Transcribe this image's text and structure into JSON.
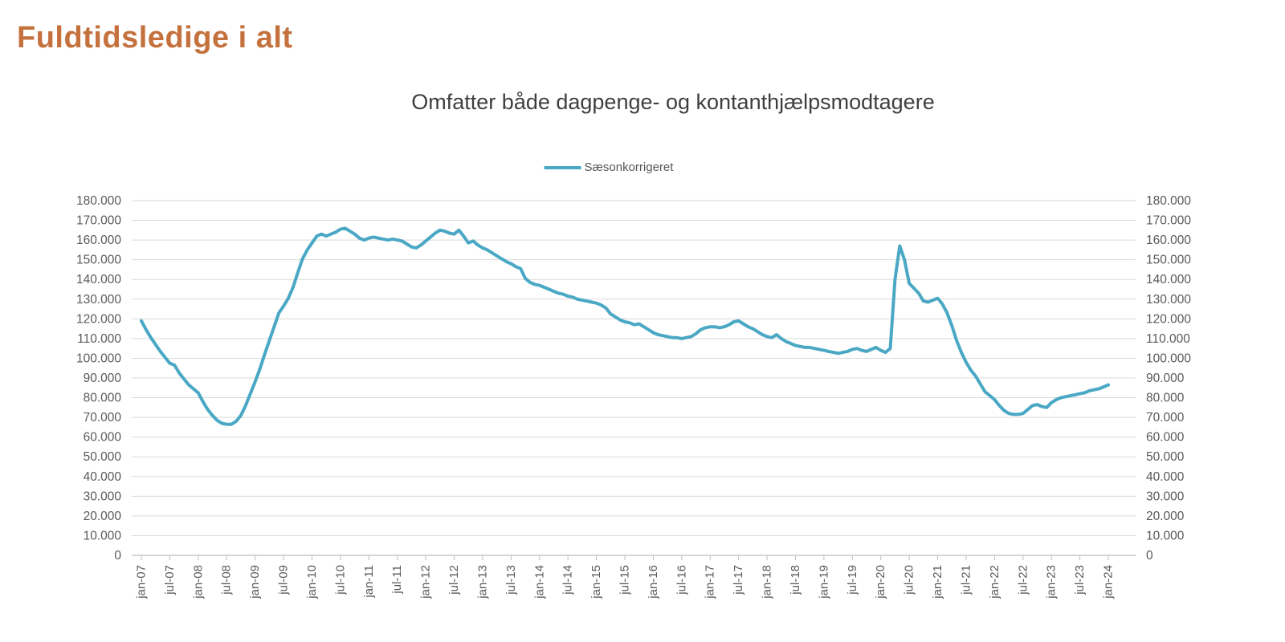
{
  "page": {
    "title": "Fuldtidsledige i alt"
  },
  "colors": {
    "title_text": "#C4713E",
    "line": "#4AA8C5",
    "axis_text": "#595959",
    "subtitle_text": "#3F3F3F",
    "gridline": "#DADADA",
    "axis_line": "#BFBFBF"
  },
  "chart_data": {
    "type": "line",
    "title": "Omfatter både dagpenge- og kontanthjælpsmodtagere",
    "frequency": "monthly",
    "x_start": "jan-07",
    "x_end": "jan-24",
    "grid": "horizontal",
    "legend_position": "top-center",
    "ylim": [
      0,
      180000
    ],
    "y_tick_step": 10000,
    "y_tick_labels": [
      "0",
      "10.000",
      "20.000",
      "30.000",
      "40.000",
      "50.000",
      "60.000",
      "70.000",
      "80.000",
      "90.000",
      "100.000",
      "110.000",
      "120.000",
      "130.000",
      "140.000",
      "150.000",
      "160.000",
      "170.000",
      "180.000"
    ],
    "x_tick_labels": [
      "jan-07",
      "jul-07",
      "jan-08",
      "jul-08",
      "jan-09",
      "jul-09",
      "jan-10",
      "jul-10",
      "jan-11",
      "jul-11",
      "jan-12",
      "jul-12",
      "jan-13",
      "jul-13",
      "jan-14",
      "jul-14",
      "jan-15",
      "jul-15",
      "jan-16",
      "jul-16",
      "jan-17",
      "jul-17",
      "jan-18",
      "jul-18",
      "jan-19",
      "jul-19",
      "jan-20",
      "jul-20",
      "jan-21",
      "jul-21",
      "jan-22",
      "jul-22",
      "jan-23",
      "jul-23",
      "jan-24"
    ],
    "series": [
      {
        "name": "Sæsonkorrigeret",
        "color": "#4AA8C5",
        "monthly_values": [
          119000,
          114500,
          110500,
          107000,
          103500,
          100500,
          97500,
          96500,
          92500,
          89500,
          86500,
          84500,
          82500,
          78000,
          74000,
          71000,
          68500,
          67000,
          66500,
          66500,
          68000,
          71000,
          76000,
          82000,
          88000,
          94500,
          102000,
          109000,
          116000,
          123000,
          126500,
          130500,
          136000,
          143500,
          150500,
          155000,
          158500,
          162000,
          163000,
          162000,
          163000,
          164000,
          165500,
          166000,
          164500,
          163000,
          161000,
          160000,
          161000,
          161500,
          161000,
          160500,
          160000,
          160500,
          160000,
          159500,
          158000,
          156500,
          156000,
          157500,
          159500,
          161500,
          163500,
          165000,
          164500,
          163500,
          163000,
          165000,
          162000,
          158500,
          159500,
          157500,
          156000,
          155000,
          153500,
          152000,
          150500,
          149000,
          148000,
          146500,
          145500,
          140500,
          138500,
          137500,
          137000,
          136000,
          135000,
          134000,
          133000,
          132500,
          131500,
          131000,
          130000,
          129500,
          129000,
          128500,
          128000,
          127000,
          125500,
          122500,
          121000,
          119500,
          118500,
          118000,
          117000,
          117500,
          116000,
          114500,
          113000,
          112000,
          111500,
          111000,
          110500,
          110500,
          110000,
          110500,
          111000,
          112500,
          114500,
          115500,
          116000,
          116000,
          115500,
          116000,
          117000,
          118500,
          119000,
          117500,
          116000,
          115000,
          113500,
          112000,
          111000,
          110500,
          112000,
          110000,
          108500,
          107500,
          106500,
          106000,
          105500,
          105500,
          105000,
          104500,
          104000,
          103500,
          103000,
          102500,
          103000,
          103500,
          104500,
          105000,
          104000,
          103500,
          104500,
          105500,
          104000,
          103000,
          105000,
          140000,
          157000,
          150000,
          138000,
          135500,
          133000,
          129000,
          128500,
          129500,
          130500,
          127500,
          123000,
          116500,
          109000,
          103000,
          98000,
          94000,
          91000,
          87000,
          83000,
          81000,
          79000,
          76000,
          73500,
          72000,
          71500,
          71500,
          72000,
          74000,
          76000,
          76500,
          75500,
          75000,
          77500,
          79000,
          80000,
          80500,
          81000,
          81500,
          82000,
          82500,
          83500,
          84000,
          84500,
          85500,
          86500
        ]
      }
    ]
  }
}
